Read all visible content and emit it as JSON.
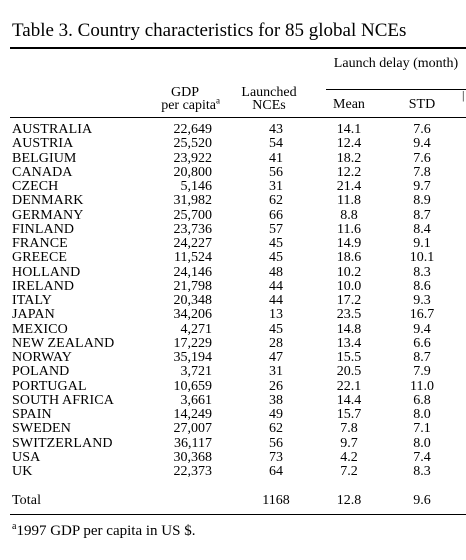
{
  "title": "Table 3.  Country characteristics for 85 global NCEs",
  "headers": {
    "launch_delay": "Launch delay (month)",
    "gdp_line1": "GDP",
    "gdp_line2": "per capita",
    "gdp_sup": "a",
    "launched_line1": "Launched",
    "launched_line2": "NCEs",
    "mean": "Mean",
    "std": "STD",
    "stray": "|"
  },
  "rows": [
    {
      "country": "AUSTRALIA",
      "gdp": "22,649",
      "nces": "43",
      "mean": "14.1",
      "std": "7.6"
    },
    {
      "country": "AUSTRIA",
      "gdp": "25,520",
      "nces": "54",
      "mean": "12.4",
      "std": "9.4"
    },
    {
      "country": "BELGIUM",
      "gdp": "23,922",
      "nces": "41",
      "mean": "18.2",
      "std": "7.6"
    },
    {
      "country": "CANADA",
      "gdp": "20,800",
      "nces": "56",
      "mean": "12.2",
      "std": "7.8"
    },
    {
      "country": "CZECH",
      "gdp": "5,146",
      "nces": "31",
      "mean": "21.4",
      "std": "9.7"
    },
    {
      "country": "DENMARK",
      "gdp": "31,982",
      "nces": "62",
      "mean": "11.8",
      "std": "8.9"
    },
    {
      "country": "GERMANY",
      "gdp": "25,700",
      "nces": "66",
      "mean": "8.8",
      "std": "8.7"
    },
    {
      "country": "FINLAND",
      "gdp": "23,736",
      "nces": "57",
      "mean": "11.6",
      "std": "8.4"
    },
    {
      "country": "FRANCE",
      "gdp": "24,227",
      "nces": "45",
      "mean": "14.9",
      "std": "9.1"
    },
    {
      "country": "GREECE",
      "gdp": "11,524",
      "nces": "45",
      "mean": "18.6",
      "std": "10.1"
    },
    {
      "country": "HOLLAND",
      "gdp": "24,146",
      "nces": "48",
      "mean": "10.2",
      "std": "8.3"
    },
    {
      "country": "IRELAND",
      "gdp": "21,798",
      "nces": "44",
      "mean": "10.0",
      "std": "8.6"
    },
    {
      "country": "ITALY",
      "gdp": "20,348",
      "nces": "44",
      "mean": "17.2",
      "std": "9.3"
    },
    {
      "country": "JAPAN",
      "gdp": "34,206",
      "nces": "13",
      "mean": "23.5",
      "std": "16.7"
    },
    {
      "country": "MEXICO",
      "gdp": "4,271",
      "nces": "45",
      "mean": "14.8",
      "std": "9.4"
    },
    {
      "country": "NEW ZEALAND",
      "gdp": "17,229",
      "nces": "28",
      "mean": "13.4",
      "std": "6.6"
    },
    {
      "country": "NORWAY",
      "gdp": "35,194",
      "nces": "47",
      "mean": "15.5",
      "std": "8.7"
    },
    {
      "country": "POLAND",
      "gdp": "3,721",
      "nces": "31",
      "mean": "20.5",
      "std": "7.9"
    },
    {
      "country": "PORTUGAL",
      "gdp": "10,659",
      "nces": "26",
      "mean": "22.1",
      "std": "11.0"
    },
    {
      "country": "SOUTH AFRICA",
      "gdp": "3,661",
      "nces": "38",
      "mean": "14.4",
      "std": "6.8"
    },
    {
      "country": "SPAIN",
      "gdp": "14,249",
      "nces": "49",
      "mean": "15.7",
      "std": "8.0"
    },
    {
      "country": "SWEDEN",
      "gdp": "27,007",
      "nces": "62",
      "mean": "7.8",
      "std": "7.1"
    },
    {
      "country": "SWITZERLAND",
      "gdp": "36,117",
      "nces": "56",
      "mean": "9.7",
      "std": "8.0"
    },
    {
      "country": "USA",
      "gdp": "30,368",
      "nces": "73",
      "mean": "4.2",
      "std": "7.4"
    },
    {
      "country": "UK",
      "gdp": "22,373",
      "nces": "64",
      "mean": "7.2",
      "std": "8.3"
    }
  ],
  "total": {
    "label": "Total",
    "nces": "1168",
    "mean": "12.8",
    "std": "9.6"
  },
  "footnote": {
    "marker": "a",
    "text": "1997 GDP per capita in US $."
  }
}
